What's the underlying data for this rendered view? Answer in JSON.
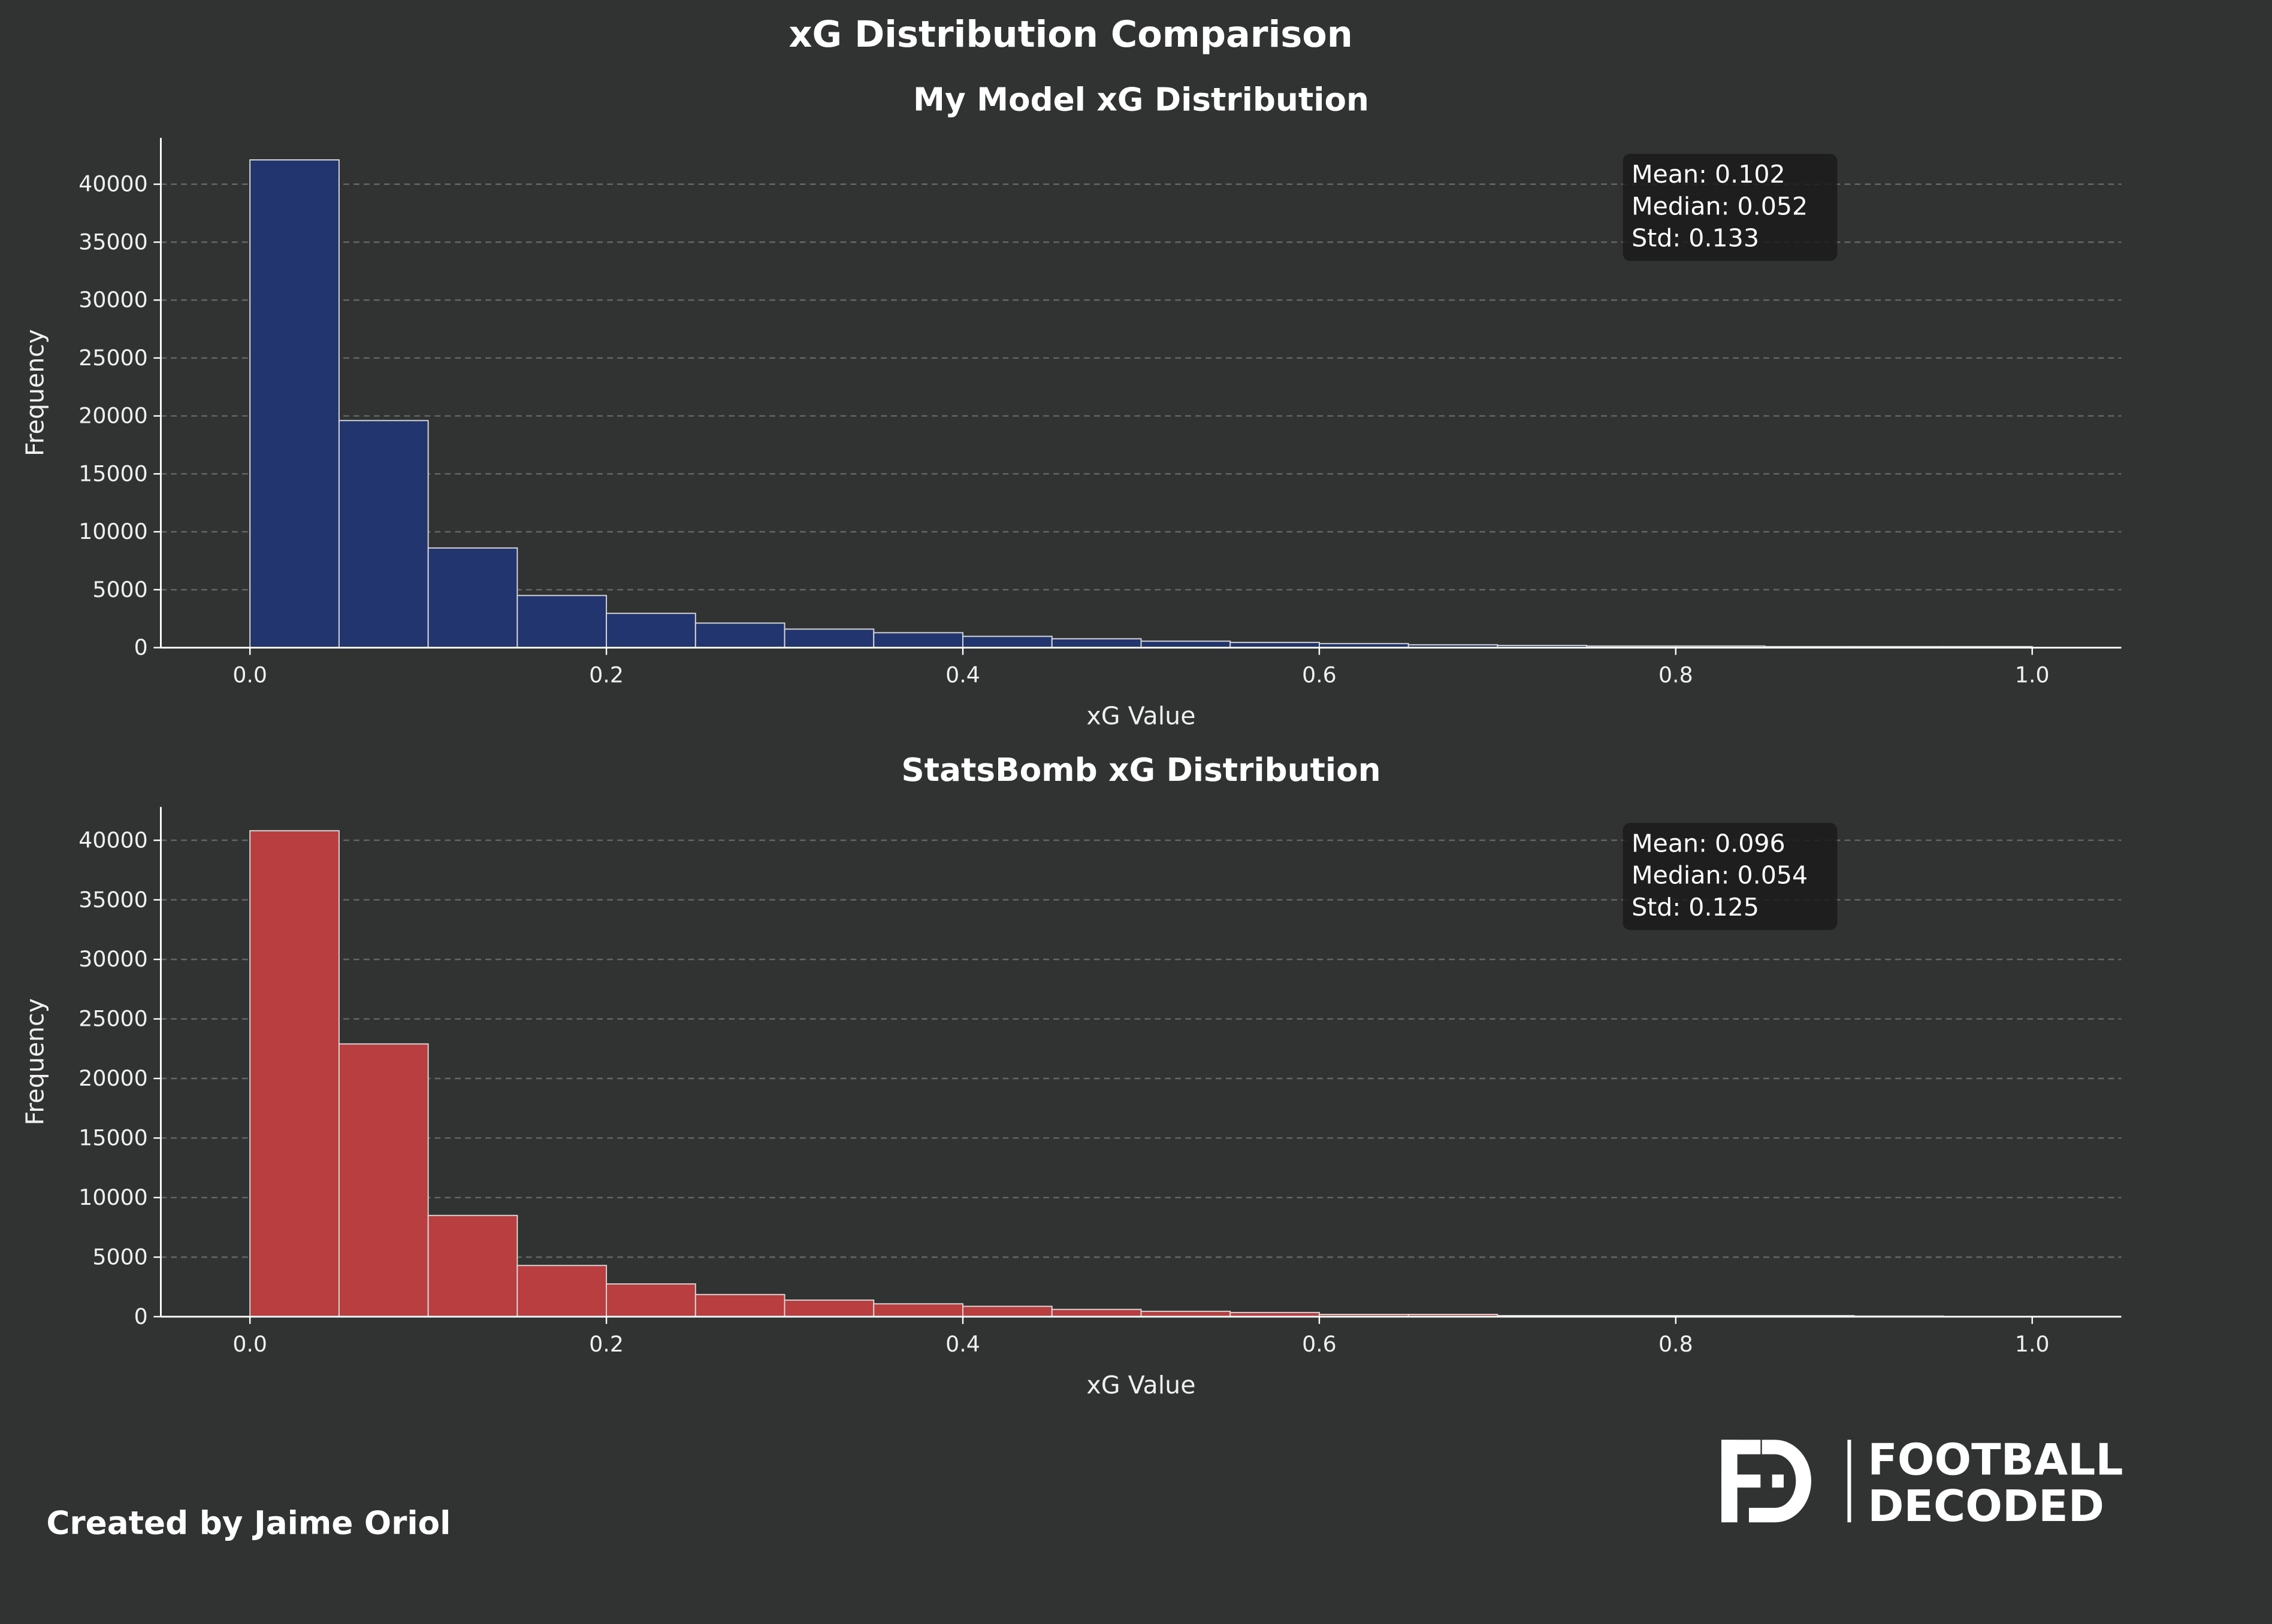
{
  "title": "xG Distribution Comparison",
  "credit": "Created by Jaime Oriol",
  "logo": {
    "mark": "FD",
    "line1": "FOOTBALL",
    "line2": "DECODED"
  },
  "colors": {
    "background": "#313332",
    "model": "#22356e",
    "statsbomb": "#b83e3f",
    "stats_box": "#1b1b1b",
    "grid": "#666666"
  },
  "chart_data": [
    {
      "type": "bar",
      "title": "My Model xG Distribution",
      "xlabel": "xG Value",
      "ylabel": "Frequency",
      "color": "#22356e",
      "bin_edges": [
        0,
        0.05,
        0.1,
        0.15,
        0.2,
        0.25,
        0.3,
        0.35,
        0.4,
        0.45,
        0.5,
        0.55,
        0.6,
        0.65,
        0.7,
        0.75,
        0.8,
        0.85,
        0.9,
        0.95,
        1.0
      ],
      "values": [
        42100,
        19600,
        8600,
        4500,
        2960,
        2120,
        1600,
        1290,
        975,
        765,
        560,
        450,
        350,
        245,
        190,
        140,
        140,
        90,
        90,
        90
      ],
      "xlim": [
        -0.05,
        1.05
      ],
      "ylim": [
        0,
        44000
      ],
      "xticks": [
        "0.0",
        "0.2",
        "0.4",
        "0.6",
        "0.8",
        "1.0"
      ],
      "yticks": [
        "0",
        "5000",
        "10000",
        "15000",
        "20000",
        "25000",
        "30000",
        "35000",
        "40000"
      ],
      "grid": "y dashed",
      "stats": [
        "Mean: 0.102",
        "Median: 0.052",
        "Std: 0.133"
      ]
    },
    {
      "type": "bar",
      "title": "StatsBomb xG Distribution",
      "xlabel": "xG Value",
      "ylabel": "Frequency",
      "color": "#b83e3f",
      "bin_edges": [
        0,
        0.05,
        0.1,
        0.15,
        0.2,
        0.25,
        0.3,
        0.35,
        0.4,
        0.45,
        0.5,
        0.55,
        0.6,
        0.65,
        0.7,
        0.75,
        0.8,
        0.85,
        0.9,
        0.95,
        1.0
      ],
      "values": [
        40800,
        22900,
        8500,
        4300,
        2750,
        1860,
        1390,
        1080,
        870,
        610,
        450,
        350,
        190,
        190,
        90,
        90,
        90,
        90,
        50,
        0
      ],
      "xlim": [
        -0.05,
        1.05
      ],
      "ylim": [
        0,
        42800
      ],
      "xticks": [
        "0.0",
        "0.2",
        "0.4",
        "0.6",
        "0.8",
        "1.0"
      ],
      "yticks": [
        "0",
        "5000",
        "10000",
        "15000",
        "20000",
        "25000",
        "30000",
        "35000",
        "40000"
      ],
      "grid": "y dashed",
      "stats": [
        "Mean: 0.096",
        "Median: 0.054",
        "Std: 0.125"
      ]
    }
  ]
}
